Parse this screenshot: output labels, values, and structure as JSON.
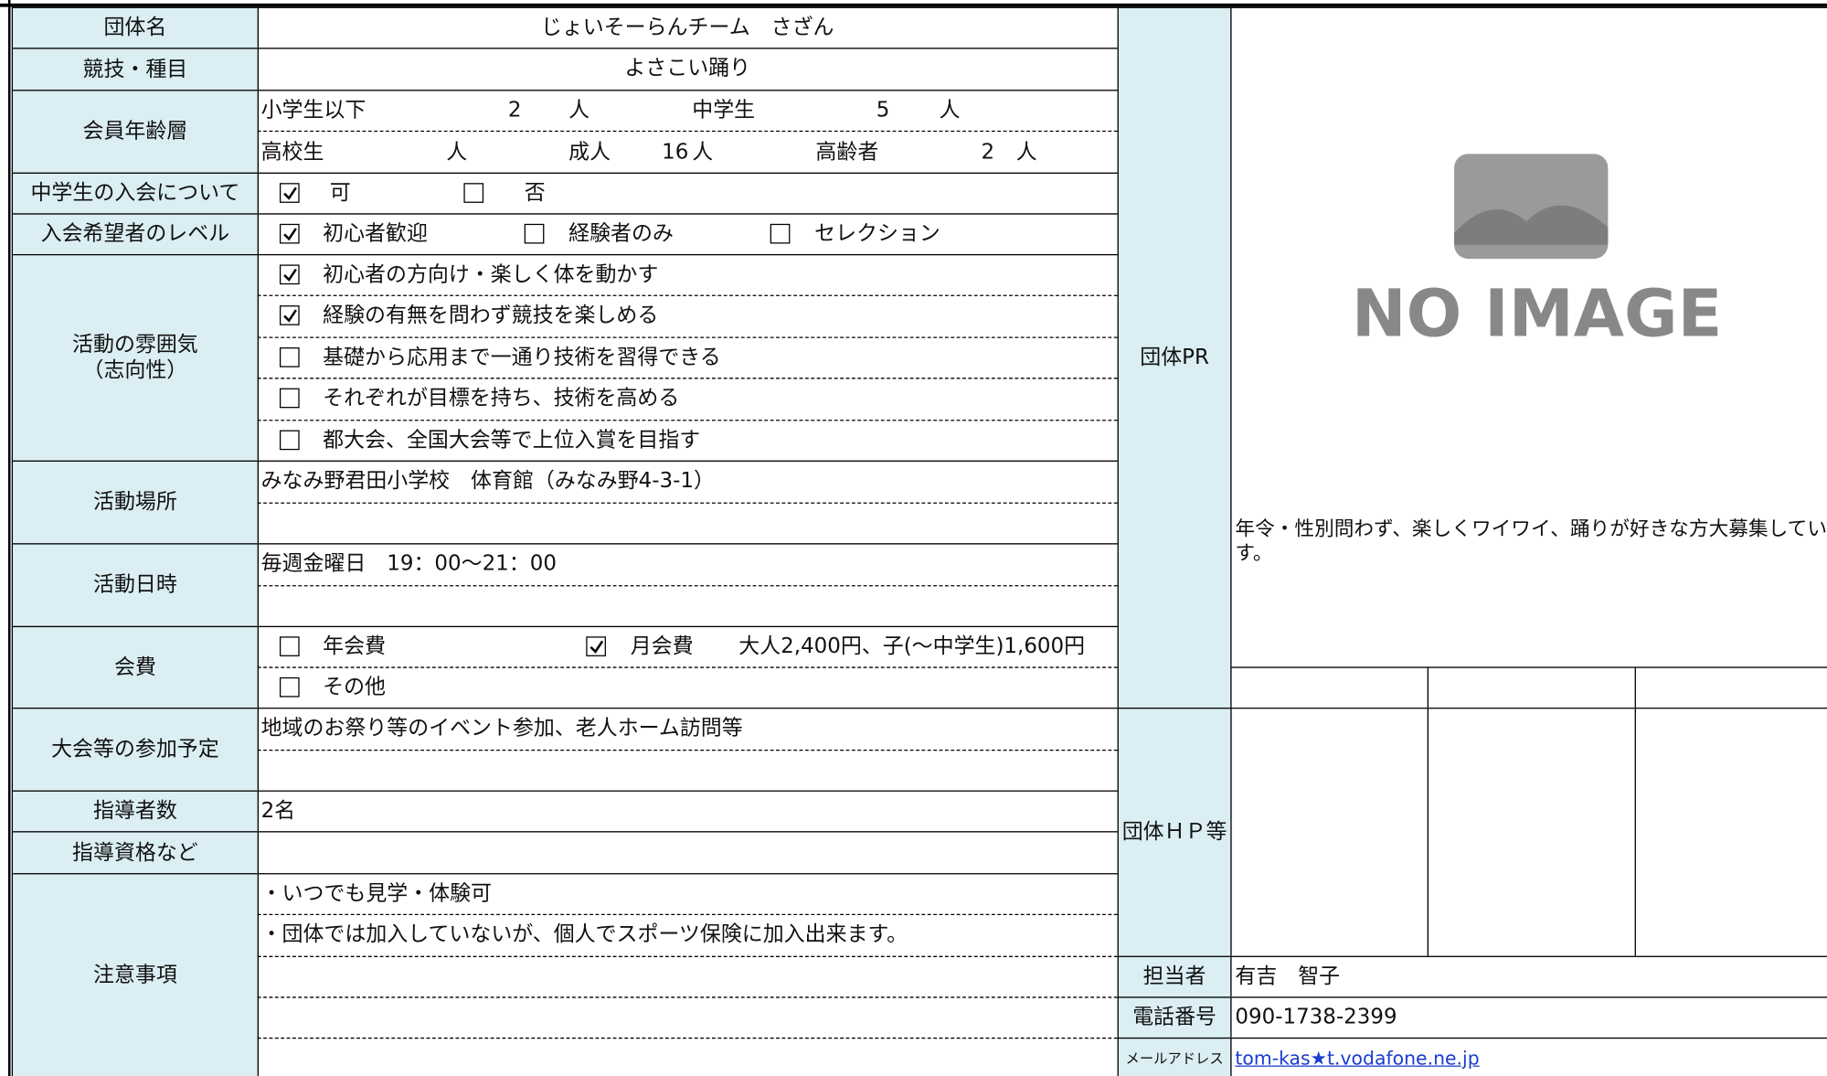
{
  "group_name": {
    "label": "団体名",
    "value": "じょいそーらんチーム　さざん"
  },
  "sport": {
    "label": "競技・種目",
    "value": "よさこい踊り"
  },
  "age": {
    "label": "会員年齢層",
    "rows": [
      [
        {
          "name": "小学生以下",
          "count": 2,
          "unit": "人"
        },
        {
          "name": "中学生",
          "count": 5,
          "unit": "人"
        }
      ],
      [
        {
          "name": "高校生",
          "unit": "人"
        },
        {
          "name": "成人",
          "count": 16,
          "unit": "人"
        },
        {
          "name": "高齢者",
          "count": 2,
          "unit": "人"
        }
      ]
    ]
  },
  "junior_high": {
    "label": "中学生の入会について",
    "options": [
      {
        "text": "可",
        "checked": true
      },
      {
        "text": "否",
        "checked": false
      }
    ]
  },
  "level": {
    "label": "入会希望者のレベル",
    "options": [
      {
        "text": "初心者歓迎",
        "checked": true
      },
      {
        "text": "経験者のみ",
        "checked": false
      },
      {
        "text": "セレクション",
        "checked": false
      }
    ]
  },
  "atmosphere": {
    "label": "活動の雰囲気\n（志向性）",
    "options": [
      {
        "text": "初心者の方向け・楽しく体を動かす",
        "checked": true
      },
      {
        "text": "経験の有無を問わず競技を楽しめる",
        "checked": true
      },
      {
        "text": "基礎から応用まで一通り技術を習得できる",
        "checked": false
      },
      {
        "text": "それぞれが目標を持ち、技術を高める",
        "checked": false
      },
      {
        "text": "都大会、全国大会等で上位入賞を目指す",
        "checked": false
      }
    ]
  },
  "place": {
    "label": "活動場所",
    "lines": [
      "みなみ野君田小学校　体育館（みなみ野4-3-1）"
    ]
  },
  "schedule": {
    "label": "活動日時",
    "lines": [
      "毎週金曜日　19：00～21：00"
    ]
  },
  "fee": {
    "label": "会費",
    "options": [
      {
        "text": "年会費",
        "checked": false
      },
      {
        "text": "月会費",
        "checked": true,
        "detail": "大人2,400円、子(～中学生)1,600円"
      },
      {
        "text": "その他",
        "checked": false
      }
    ]
  },
  "events": {
    "label": "大会等の参加予定",
    "lines": [
      "地域のお祭り等のイベント参加、老人ホーム訪問等"
    ]
  },
  "instructors": {
    "label": "指導者数",
    "value": "2名"
  },
  "qualification": {
    "label": "指導資格など"
  },
  "notes": {
    "label": "注意事項",
    "lines": [
      "・いつでも見学・体験可",
      "・団体では加入していないが、個人でスポーツ保険に加入出来ます。"
    ]
  },
  "pr": {
    "label": "団体PR",
    "image_text": "NO IMAGE",
    "text": "年令・性別問わず、楽しくワイワイ、踊りが好きな方大募集しています。"
  },
  "hp": {
    "label": "団体ＨＰ等"
  },
  "contact": {
    "person_label": "担当者",
    "person": "有吉　智子",
    "phone_label": "電話番号",
    "phone": "090-1738-2399",
    "email_label": "メールアドレス",
    "email": "tom-kas★t.vodafone.ne.jp"
  }
}
